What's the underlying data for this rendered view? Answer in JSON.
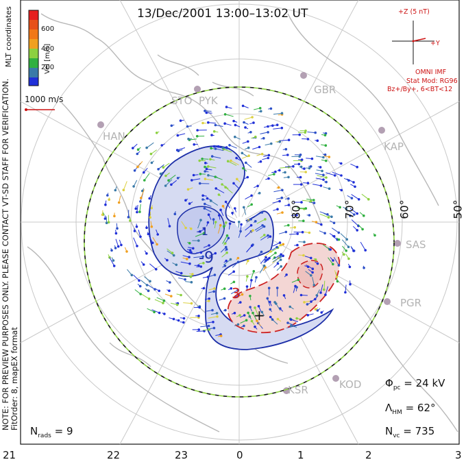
{
  "title": "13/Dec/2001 13:00–13:02 UT",
  "note": {
    "line1": "NOTE: FOR PREVIEW PURPOSES ONLY. PLEASE CONTACT VT-SD STAFF FOR VERIFICATION.",
    "line2": "FitOrder: 8, mapEX format"
  },
  "coords_label": "MLT coordinates",
  "colorbar": {
    "label": "Vel [m/s]",
    "ticks": [
      "600",
      "400",
      "200"
    ],
    "colors": [
      "#e62020",
      "#f07818",
      "#f0a020",
      "#dcd040",
      "#8cd040",
      "#30b040",
      "#3a7aa8",
      "#2d50c8",
      "#2030d8"
    ]
  },
  "scale_vector": {
    "label": "1000 m/s",
    "color": "#cc1111"
  },
  "imf": {
    "z_label": "+Z (5 nT)",
    "y_label": "+Y",
    "source": "OMNI IMF",
    "stat_mod": "Stat Mod: RG96",
    "condition": "Bz+/By+, 6<BT<12"
  },
  "stats": {
    "phi_pc": "= 24 kV",
    "lambda_hm": "= 62°",
    "n_vc": "= 735",
    "n_rads": "= 9"
  },
  "mlt_ticks": [
    "21",
    "22",
    "23",
    "0",
    "1",
    "2",
    "3"
  ],
  "lat_labels": [
    "80°",
    "70°",
    "60°",
    "50°"
  ],
  "radars": [
    "STO",
    "PYK",
    "GBR",
    "HAN",
    "KAP",
    "SAS",
    "PGR",
    "KSR",
    "KOD"
  ],
  "contour_labels": [
    "-9",
    "-1",
    "3",
    "+"
  ],
  "colors": {
    "negative_cell": "#1d2fa8",
    "positive_cell": "#cc2222",
    "hm_boundary": "#8cd040"
  }
}
